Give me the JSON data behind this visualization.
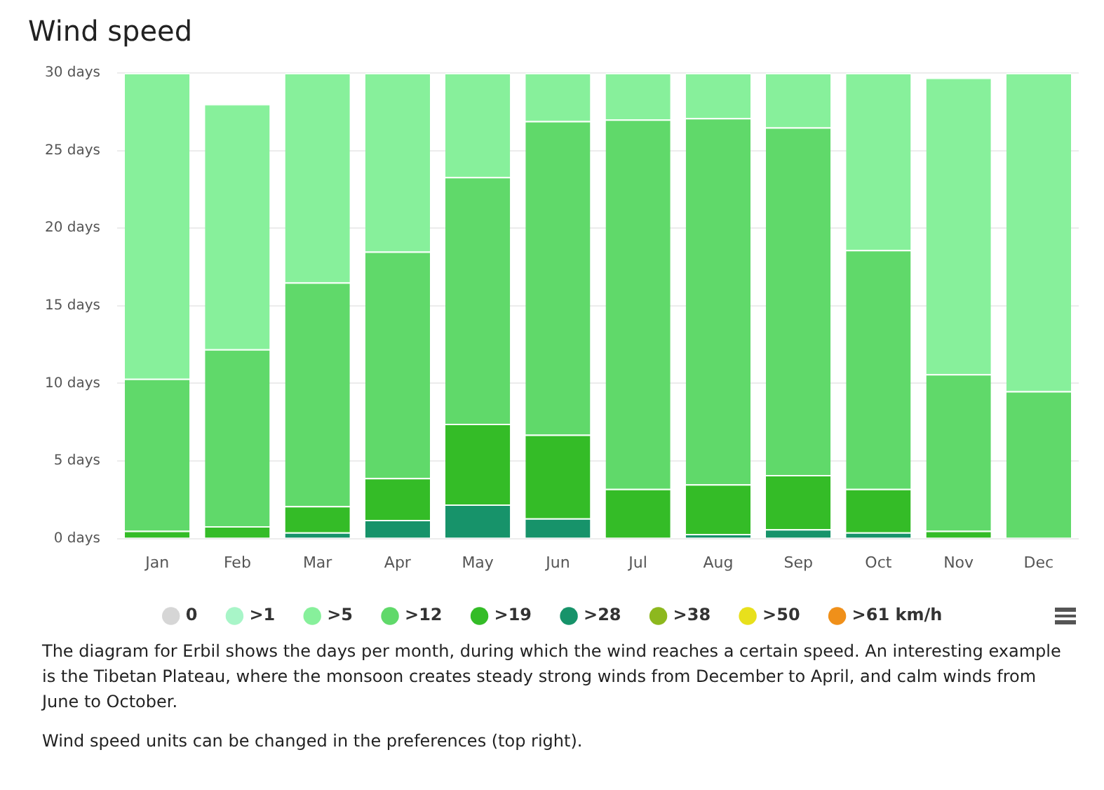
{
  "chart_data": {
    "type": "bar",
    "title": "Wind speed",
    "stacked": true,
    "categories": [
      "Jan",
      "Feb",
      "Mar",
      "Apr",
      "May",
      "Jun",
      "Jul",
      "Aug",
      "Sep",
      "Oct",
      "Nov",
      "Dec"
    ],
    "series": [
      {
        "name": ">61 km/h",
        "color": "#f0901a",
        "values": [
          null,
          null,
          null,
          null,
          null,
          null,
          null,
          null,
          null,
          null,
          null,
          null
        ]
      },
      {
        "name": ">50",
        "color": "#e8e01c",
        "values": [
          null,
          null,
          null,
          null,
          null,
          null,
          null,
          null,
          null,
          null,
          null,
          null
        ]
      },
      {
        "name": ">38",
        "color": "#8db81e",
        "values": [
          null,
          null,
          null,
          null,
          null,
          null,
          null,
          null,
          null,
          null,
          null,
          null
        ]
      },
      {
        "name": ">28",
        "color": "#17936a",
        "values": [
          0,
          0,
          0.4,
          1.2,
          2.2,
          1.3,
          0,
          0.3,
          0.6,
          0.4,
          0,
          0
        ]
      },
      {
        "name": ">19",
        "color": "#34bc27",
        "values": [
          0.5,
          0.8,
          1.7,
          2.7,
          5.2,
          5.4,
          3.2,
          3.2,
          3.5,
          2.8,
          0.5,
          0
        ]
      },
      {
        "name": ">12",
        "color": "#60d96a",
        "values": [
          9.8,
          11.4,
          14.4,
          14.6,
          15.9,
          20.2,
          23.8,
          23.6,
          22.4,
          15.4,
          10.1,
          9.5
        ]
      },
      {
        "name": ">5",
        "color": "#87f09b",
        "values": [
          19.7,
          15.8,
          13.5,
          11.5,
          6.7,
          3.1,
          3.0,
          2.9,
          3.5,
          11.4,
          19.1,
          20.5
        ]
      },
      {
        "name": ">1",
        "color": "#a8f5c8",
        "values": [
          null,
          null,
          null,
          null,
          null,
          null,
          null,
          null,
          null,
          null,
          null,
          null
        ]
      },
      {
        "name": "0",
        "color": "#d6d6d6",
        "values": [
          null,
          null,
          null,
          null,
          null,
          null,
          null,
          null,
          null,
          null,
          null,
          null
        ]
      }
    ],
    "ylim": [
      0,
      30
    ],
    "yticks": [
      {
        "value": 0,
        "label": "0 days"
      },
      {
        "value": 5,
        "label": "5 days"
      },
      {
        "value": 10,
        "label": "10 days"
      },
      {
        "value": 15,
        "label": "15 days"
      },
      {
        "value": 20,
        "label": "20 days"
      },
      {
        "value": 25,
        "label": "25 days"
      },
      {
        "value": 30,
        "label": "30 days"
      }
    ],
    "grid": "y",
    "legend": "bottom",
    "annotations": [
      "The diagram for Erbil shows the days per month, during which the wind reaches a certain speed. An interesting example is the Tibetan Plateau, where the monsoon creates steady strong winds from December to April, and calm winds from June to October.",
      "Wind speed units can be changed in the preferences (top right)."
    ]
  }
}
